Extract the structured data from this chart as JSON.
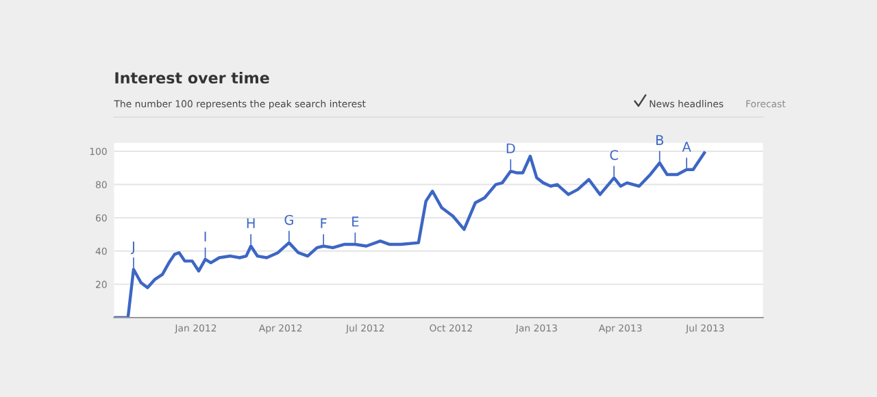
{
  "chart_data": {
    "type": "line",
    "title": "Interest over time",
    "subtitle": "The number 100 represents the peak search interest",
    "x": [
      "2011-10-06",
      "2011-10-20",
      "2011-10-26",
      "2011-11-03",
      "2011-11-10",
      "2011-11-18",
      "2011-11-26",
      "2011-12-03",
      "2011-12-09",
      "2011-12-14",
      "2011-12-20",
      "2011-12-28",
      "2012-01-04",
      "2012-01-11",
      "2012-01-17",
      "2012-01-26",
      "2012-02-07",
      "2012-02-17",
      "2012-02-24",
      "2012-02-29",
      "2012-03-07",
      "2012-03-17",
      "2012-03-29",
      "2012-04-10",
      "2012-04-20",
      "2012-04-30",
      "2012-05-10",
      "2012-05-17",
      "2012-05-27",
      "2012-06-08",
      "2012-06-20",
      "2012-07-02",
      "2012-07-17",
      "2012-07-27",
      "2012-08-08",
      "2012-08-27",
      "2012-09-04",
      "2012-09-11",
      "2012-09-21",
      "2012-10-03",
      "2012-10-15",
      "2012-10-27",
      "2012-11-06",
      "2012-11-18",
      "2012-11-25",
      "2012-12-04",
      "2012-12-11",
      "2012-12-17",
      "2012-12-25",
      "2013-01-01",
      "2013-01-08",
      "2013-01-16",
      "2013-01-23",
      "2013-02-04",
      "2013-02-14",
      "2013-02-26",
      "2013-03-10",
      "2013-03-25",
      "2013-04-01",
      "2013-04-08",
      "2013-04-21",
      "2013-05-03",
      "2013-05-13",
      "2013-05-21",
      "2013-06-01",
      "2013-06-11",
      "2013-06-18",
      "2013-06-30"
    ],
    "series": [
      {
        "color": "#3d66c4",
        "values": [
          0,
          0,
          29,
          21,
          18,
          23,
          26,
          33,
          38,
          39,
          34,
          34,
          28,
          35,
          33,
          36,
          37,
          36,
          37,
          43,
          37,
          36,
          39,
          45,
          39,
          37,
          42,
          43,
          42,
          44,
          44,
          43,
          46,
          44,
          44,
          45,
          70,
          76,
          66,
          61,
          53,
          69,
          72,
          80,
          81,
          88,
          87,
          87,
          97,
          84,
          81,
          79,
          80,
          74,
          77,
          83,
          74,
          84,
          79,
          81,
          79,
          86,
          93,
          86,
          86,
          89,
          89,
          99
        ]
      }
    ],
    "xlim": [
      "2011-10-05",
      "2013-09-01"
    ],
    "xticks": [
      {
        "value": "2012-01-01",
        "label": "Jan 2012"
      },
      {
        "value": "2012-04-01",
        "label": "Apr 2012"
      },
      {
        "value": "2012-07-01",
        "label": "Jul 2012"
      },
      {
        "value": "2012-10-01",
        "label": "Oct 2012"
      },
      {
        "value": "2013-01-01",
        "label": "Jan 2013"
      },
      {
        "value": "2013-04-01",
        "label": "Apr 2013"
      },
      {
        "value": "2013-07-01",
        "label": "Jul 2013"
      }
    ],
    "ylim": [
      0,
      105
    ],
    "yticks": [
      {
        "value": 0,
        "label": null
      },
      20,
      40,
      60,
      80,
      100
    ],
    "grid": "y",
    "marker": "none",
    "line_style": "solid",
    "legend": false,
    "annotations": [
      {
        "text": "J",
        "x": "2011-10-26",
        "y": 29
      },
      {
        "text": "I",
        "x": "2012-01-11",
        "y": 35
      },
      {
        "text": "H",
        "x": "2012-02-29",
        "y": 43
      },
      {
        "text": "G",
        "x": "2012-04-10",
        "y": 45
      },
      {
        "text": "F",
        "x": "2012-05-17",
        "y": 43
      },
      {
        "text": "E",
        "x": "2012-06-20",
        "y": 44
      },
      {
        "text": "D",
        "x": "2012-12-04",
        "y": 88
      },
      {
        "text": "C",
        "x": "2013-03-25",
        "y": 84
      },
      {
        "text": "B",
        "x": "2013-05-13",
        "y": 93
      },
      {
        "text": "A",
        "x": "2013-06-11",
        "y": 89
      },
      "News headlines",
      "Forecast"
    ]
  }
}
